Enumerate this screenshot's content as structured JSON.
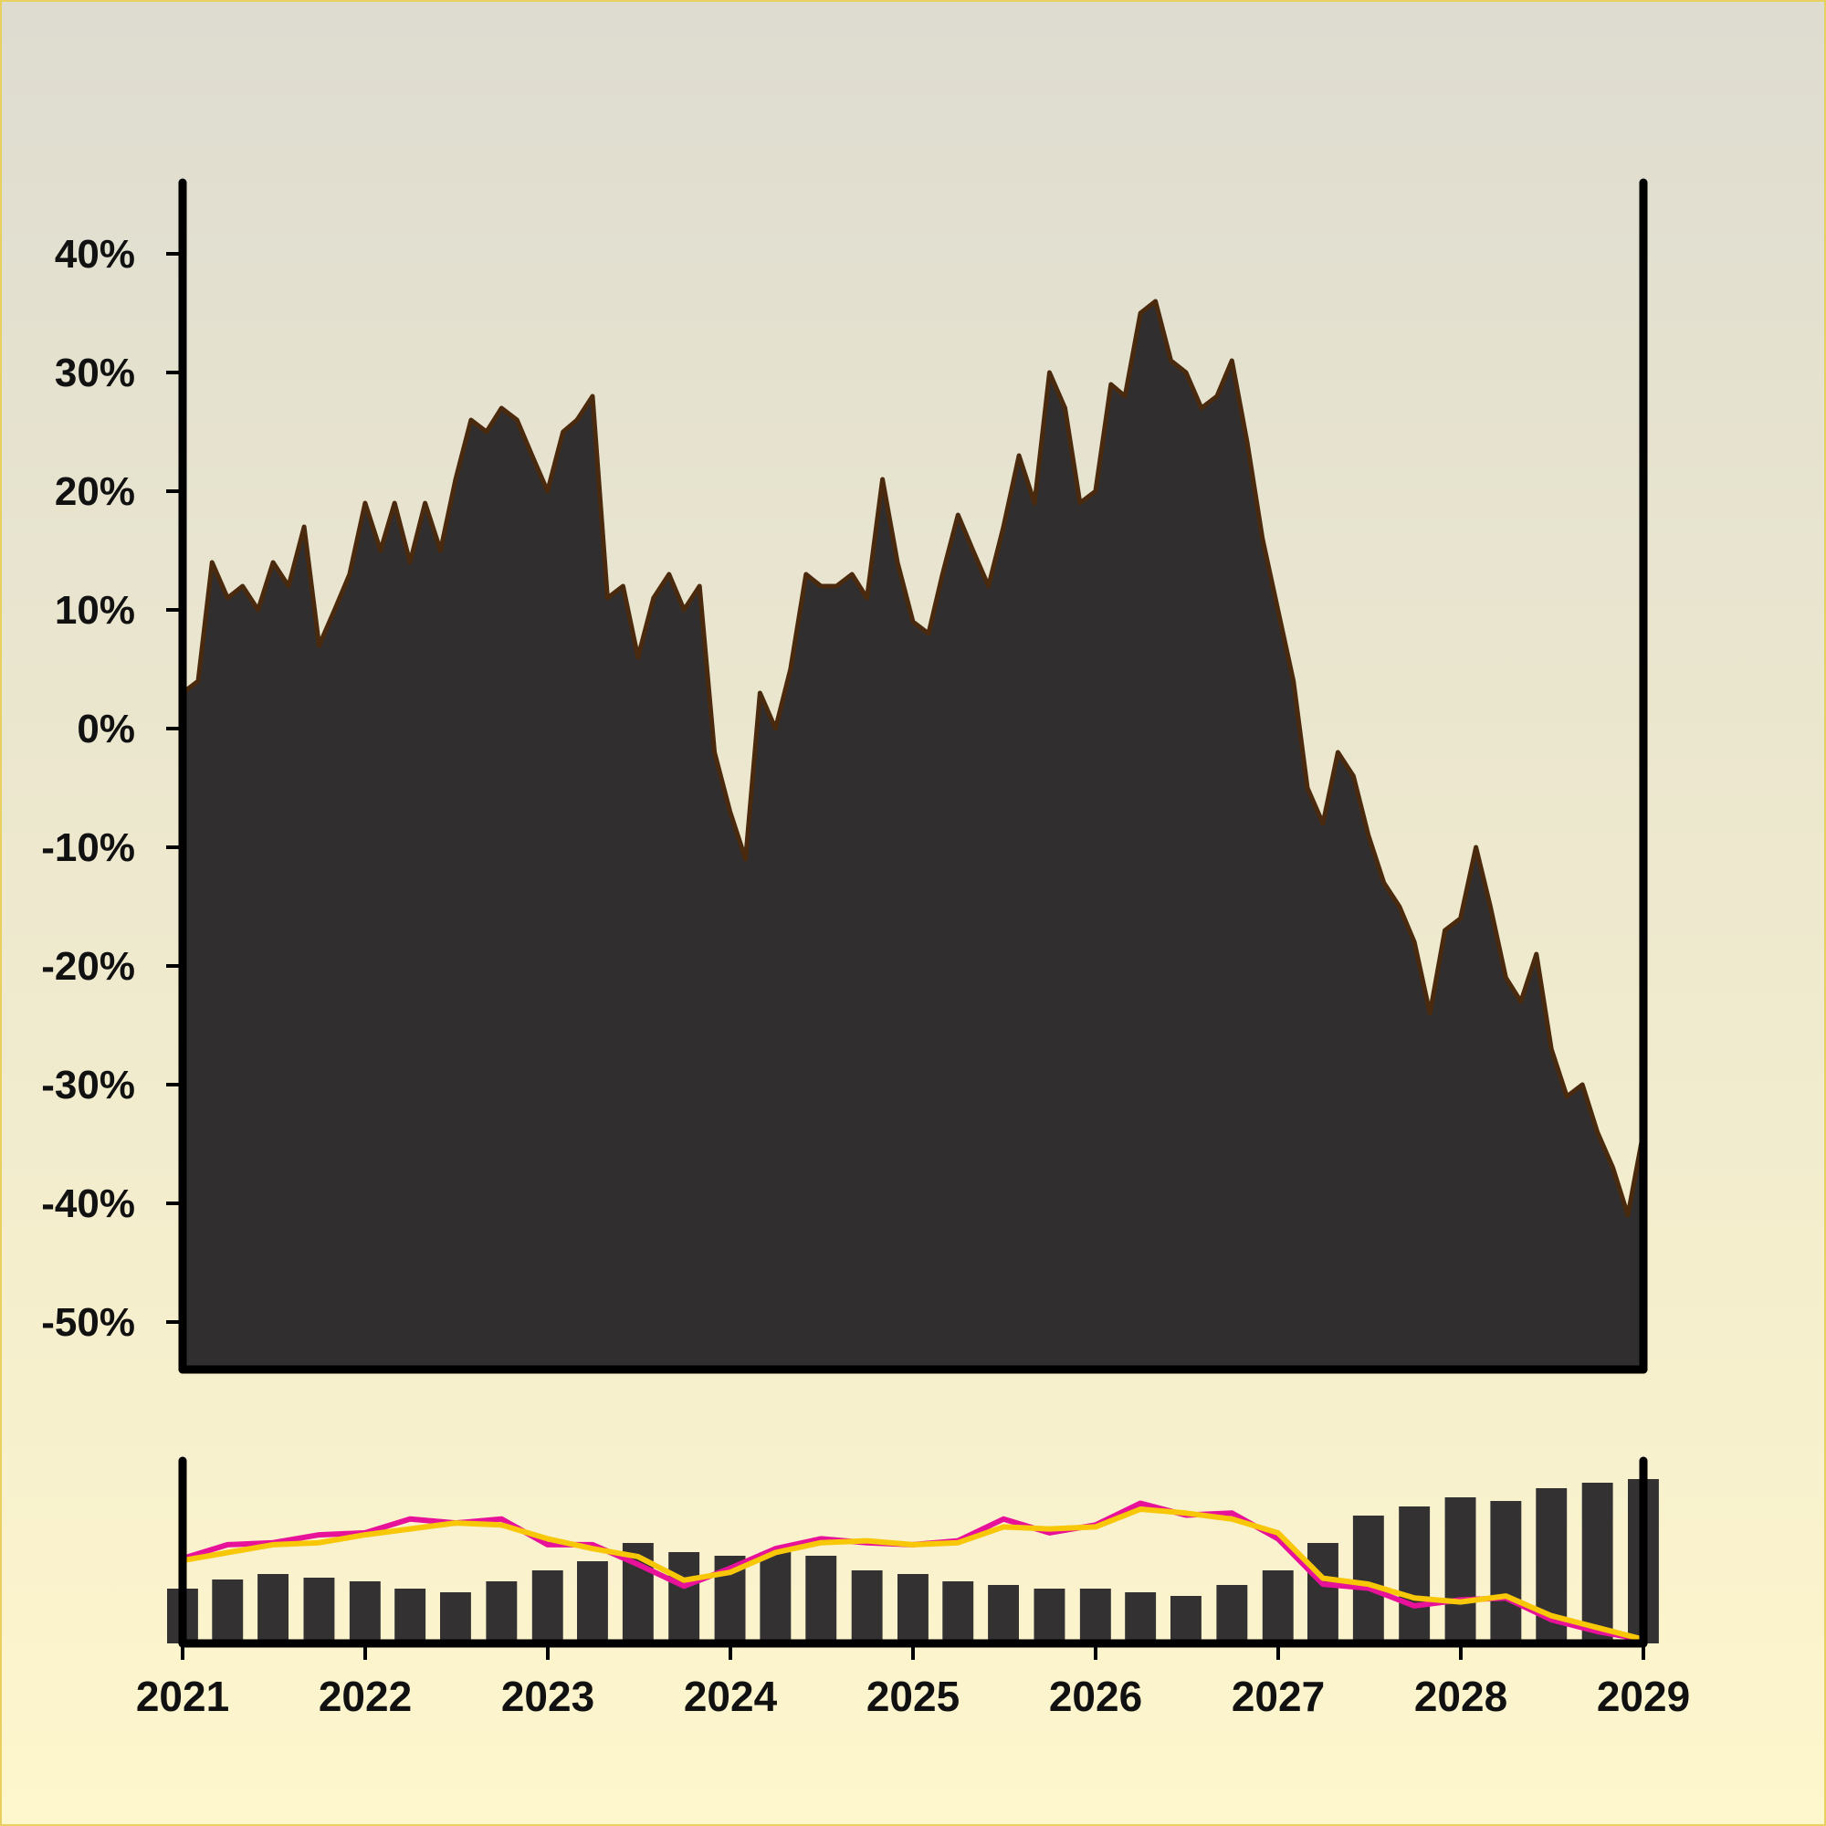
{
  "chart_data": [
    {
      "type": "area",
      "title": "",
      "xlabel": "",
      "ylabel": "",
      "ylim": [
        -54,
        46
      ],
      "xlim": [
        "2021-01-01",
        "2029-01-01"
      ],
      "y_unit": "%",
      "yticks": [
        {
          "value": 40,
          "label": "40%"
        },
        {
          "value": 30,
          "label": "30%"
        },
        {
          "value": 20,
          "label": "20%"
        },
        {
          "value": 10,
          "label": "10%"
        },
        {
          "value": 0,
          "label": "0%"
        },
        {
          "value": -10,
          "label": "-10%"
        },
        {
          "value": -20,
          "label": "-20%"
        },
        {
          "value": -30,
          "label": "-30%"
        },
        {
          "value": -40,
          "label": "-40%"
        },
        {
          "value": -50,
          "label": "-50%"
        }
      ],
      "grid": false,
      "colors": {
        "fill": "#302e2f",
        "line": "#4a2a0e"
      },
      "series": [
        {
          "x": [
            "2021-01-01",
            "2021-02-01",
            "2021-03-01",
            "2021-04-01",
            "2021-05-01",
            "2021-06-01",
            "2021-07-01",
            "2021-08-01",
            "2021-09-01",
            "2021-10-01",
            "2021-11-01",
            "2021-12-01",
            "2022-01-01",
            "2022-02-01",
            "2022-03-01",
            "2022-04-01",
            "2022-05-01",
            "2022-06-01",
            "2022-07-01",
            "2022-08-01",
            "2022-09-01",
            "2022-10-01",
            "2022-11-01",
            "2022-12-01",
            "2023-01-01",
            "2023-02-01",
            "2023-03-01",
            "2023-04-01",
            "2023-05-01",
            "2023-06-01",
            "2023-07-01",
            "2023-08-01",
            "2023-09-01",
            "2023-10-01",
            "2023-11-01",
            "2023-12-01",
            "2024-01-01",
            "2024-02-01",
            "2024-03-01",
            "2024-04-01",
            "2024-05-01",
            "2024-06-01",
            "2024-07-01",
            "2024-08-01",
            "2024-09-01",
            "2024-10-01",
            "2024-11-01",
            "2024-12-01",
            "2025-01-01",
            "2025-02-01",
            "2025-03-01",
            "2025-04-01",
            "2025-05-01",
            "2025-06-01",
            "2025-07-01",
            "2025-08-01",
            "2025-09-01",
            "2025-10-01",
            "2025-11-01",
            "2025-12-01",
            "2026-01-01",
            "2026-02-01",
            "2026-03-01",
            "2026-04-01",
            "2026-05-01",
            "2026-06-01",
            "2026-07-01",
            "2026-08-01",
            "2026-09-01",
            "2026-10-01",
            "2026-11-01",
            "2026-12-01",
            "2027-01-01",
            "2027-02-01",
            "2027-03-01",
            "2027-04-01",
            "2027-05-01",
            "2027-06-01",
            "2027-07-01",
            "2027-08-01",
            "2027-09-01",
            "2027-10-01",
            "2027-11-01",
            "2027-12-01",
            "2028-01-01",
            "2028-02-01",
            "2028-03-01",
            "2028-04-01",
            "2028-05-01",
            "2028-06-01",
            "2028-07-01",
            "2028-08-01",
            "2028-09-01",
            "2028-10-01",
            "2028-11-01",
            "2028-12-01",
            "2029-01-01"
          ],
          "values": [
            3,
            4,
            14,
            11,
            12,
            10,
            14,
            12,
            17,
            7,
            10,
            13,
            19,
            15,
            19,
            14,
            19,
            15,
            21,
            26,
            25,
            27,
            26,
            23,
            20,
            25,
            26,
            28,
            11,
            12,
            6,
            11,
            13,
            10,
            12,
            -2,
            -7,
            -11,
            3,
            0,
            5,
            13,
            12,
            12,
            13,
            11,
            21,
            14,
            9,
            8,
            13,
            18,
            15,
            12,
            17,
            23,
            19,
            30,
            27,
            19,
            20,
            29,
            28,
            35,
            36,
            31,
            30,
            27,
            28,
            31,
            24,
            16,
            10,
            4,
            -5,
            -8,
            -2,
            -4,
            -9,
            -13,
            -15,
            -18,
            -24,
            -17,
            -16,
            -10,
            -15,
            -21,
            -23,
            -19,
            -27,
            -31,
            -30,
            -34,
            -37,
            -41,
            -34
          ]
        }
      ]
    },
    {
      "type": "bar",
      "title": "",
      "xlabel": "",
      "ylabel": "",
      "xlim": [
        "2021-01-01",
        "2029-01-01"
      ],
      "xticks": [
        "2021",
        "2022",
        "2023",
        "2024",
        "2025",
        "2026",
        "2027",
        "2028",
        "2029"
      ],
      "grid": false,
      "bar_color": "#333132",
      "series": [
        {
          "type": "bar",
          "x": [
            "2021-01-01",
            "2021-04-01",
            "2021-07-01",
            "2021-10-01",
            "2022-01-01",
            "2022-04-01",
            "2022-07-01",
            "2022-10-01",
            "2023-01-01",
            "2023-04-01",
            "2023-07-01",
            "2023-10-01",
            "2024-01-01",
            "2024-04-01",
            "2024-07-01",
            "2024-10-01",
            "2025-01-01",
            "2025-04-01",
            "2025-07-01",
            "2025-10-01",
            "2026-01-01",
            "2026-04-01",
            "2026-07-01",
            "2026-10-01",
            "2027-01-01",
            "2027-04-01",
            "2027-07-01",
            "2027-10-01",
            "2028-01-01",
            "2028-04-01",
            "2028-07-01",
            "2028-10-01",
            "2029-01-01"
          ],
          "values": [
            30,
            35,
            38,
            36,
            34,
            30,
            28,
            34,
            40,
            45,
            55,
            50,
            48,
            50,
            48,
            40,
            38,
            34,
            32,
            30,
            30,
            28,
            26,
            32,
            40,
            55,
            70,
            75,
            80,
            78,
            85,
            88,
            90
          ]
        },
        {
          "type": "line",
          "name": "",
          "color": "#e8129a",
          "x": [
            "2021-01-01",
            "2021-04-01",
            "2021-07-01",
            "2021-10-01",
            "2022-01-01",
            "2022-04-01",
            "2022-07-01",
            "2022-10-01",
            "2023-01-01",
            "2023-04-01",
            "2023-07-01",
            "2023-10-01",
            "2024-01-01",
            "2024-04-01",
            "2024-07-01",
            "2024-10-01",
            "2025-01-01",
            "2025-04-01",
            "2025-07-01",
            "2025-10-01",
            "2026-01-01",
            "2026-04-01",
            "2026-07-01",
            "2026-10-01",
            "2027-01-01",
            "2027-04-01",
            "2027-07-01",
            "2027-10-01",
            "2028-01-01",
            "2028-04-01",
            "2028-07-01",
            "2028-10-01",
            "2029-01-01"
          ],
          "values": [
            5,
            12,
            13,
            17,
            18,
            25,
            23,
            25,
            12,
            12,
            2,
            -9,
            0,
            10,
            15,
            13,
            12,
            14,
            25,
            18,
            22,
            33,
            27,
            28,
            15,
            -8,
            -10,
            -19,
            -16,
            -15,
            -26,
            -32,
            -36
          ]
        },
        {
          "type": "line",
          "name": "",
          "color": "#f8c808",
          "x": [
            "2021-01-01",
            "2021-04-01",
            "2021-07-01",
            "2021-10-01",
            "2022-01-01",
            "2022-04-01",
            "2022-07-01",
            "2022-10-01",
            "2023-01-01",
            "2023-04-01",
            "2023-07-01",
            "2023-10-01",
            "2024-01-01",
            "2024-04-01",
            "2024-07-01",
            "2024-10-01",
            "2025-01-01",
            "2025-04-01",
            "2025-07-01",
            "2025-10-01",
            "2026-01-01",
            "2026-04-01",
            "2026-07-01",
            "2026-10-01",
            "2027-01-01",
            "2027-04-01",
            "2027-07-01",
            "2027-10-01",
            "2028-01-01",
            "2028-04-01",
            "2028-07-01",
            "2028-10-01",
            "2029-01-01"
          ],
          "values": [
            4,
            8,
            12,
            13,
            17,
            20,
            23,
            22,
            15,
            10,
            6,
            -6,
            -2,
            8,
            13,
            14,
            12,
            13,
            21,
            20,
            21,
            30,
            28,
            25,
            18,
            -5,
            -8,
            -15,
            -17,
            -14,
            -24,
            -30,
            -36
          ]
        }
      ]
    }
  ]
}
